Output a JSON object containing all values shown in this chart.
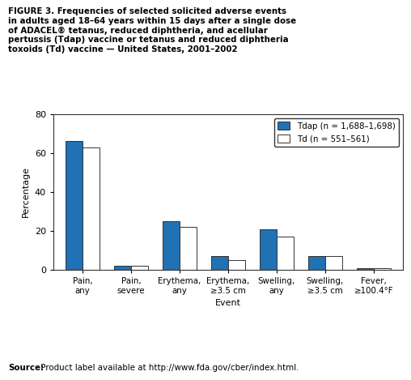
{
  "categories": [
    "Pain,\nany",
    "Pain,\nsevere",
    "Erythema,\nany",
    "Erythema,\n≥3.5 cm",
    "Swelling,\nany",
    "Swelling,\n≥3.5 cm",
    "Fever,\n≥100.4°F"
  ],
  "tdap_values": [
    66,
    2,
    25,
    7,
    21,
    7,
    1
  ],
  "td_values": [
    63,
    2,
    22,
    5,
    17,
    7,
    1
  ],
  "tdap_color": "#2171b5",
  "td_color": "#ffffff",
  "td_edgecolor": "#333333",
  "tdap_edgecolor": "#333333",
  "ylabel": "Percentage",
  "xlabel": "Event",
  "ylim": [
    0,
    80
  ],
  "yticks": [
    0,
    20,
    40,
    60,
    80
  ],
  "legend_tdap": "Tdap (n = 1,688–1,698)",
  "legend_td": "Td (n = 551–561)",
  "bar_width": 0.35,
  "figure_title_line1": "FIGURE 3. Frequencies of selected solicited adverse events",
  "figure_title_line2": "in adults aged 18–64 years within 15 days after a single dose",
  "figure_title_line3": "of ADACEL® tetanus, reduced diphtheria, and acellular",
  "figure_title_line4": "pertussis (Tdap) vaccine or tetanus and reduced diphtheria",
  "figure_title_line5": "toxoids (Td) vaccine — United States, 2001–2002",
  "source_bold": "Source:",
  "source_rest": " Product label available at http://www.fda.gov/cber/index.html.",
  "background_color": "#ffffff"
}
